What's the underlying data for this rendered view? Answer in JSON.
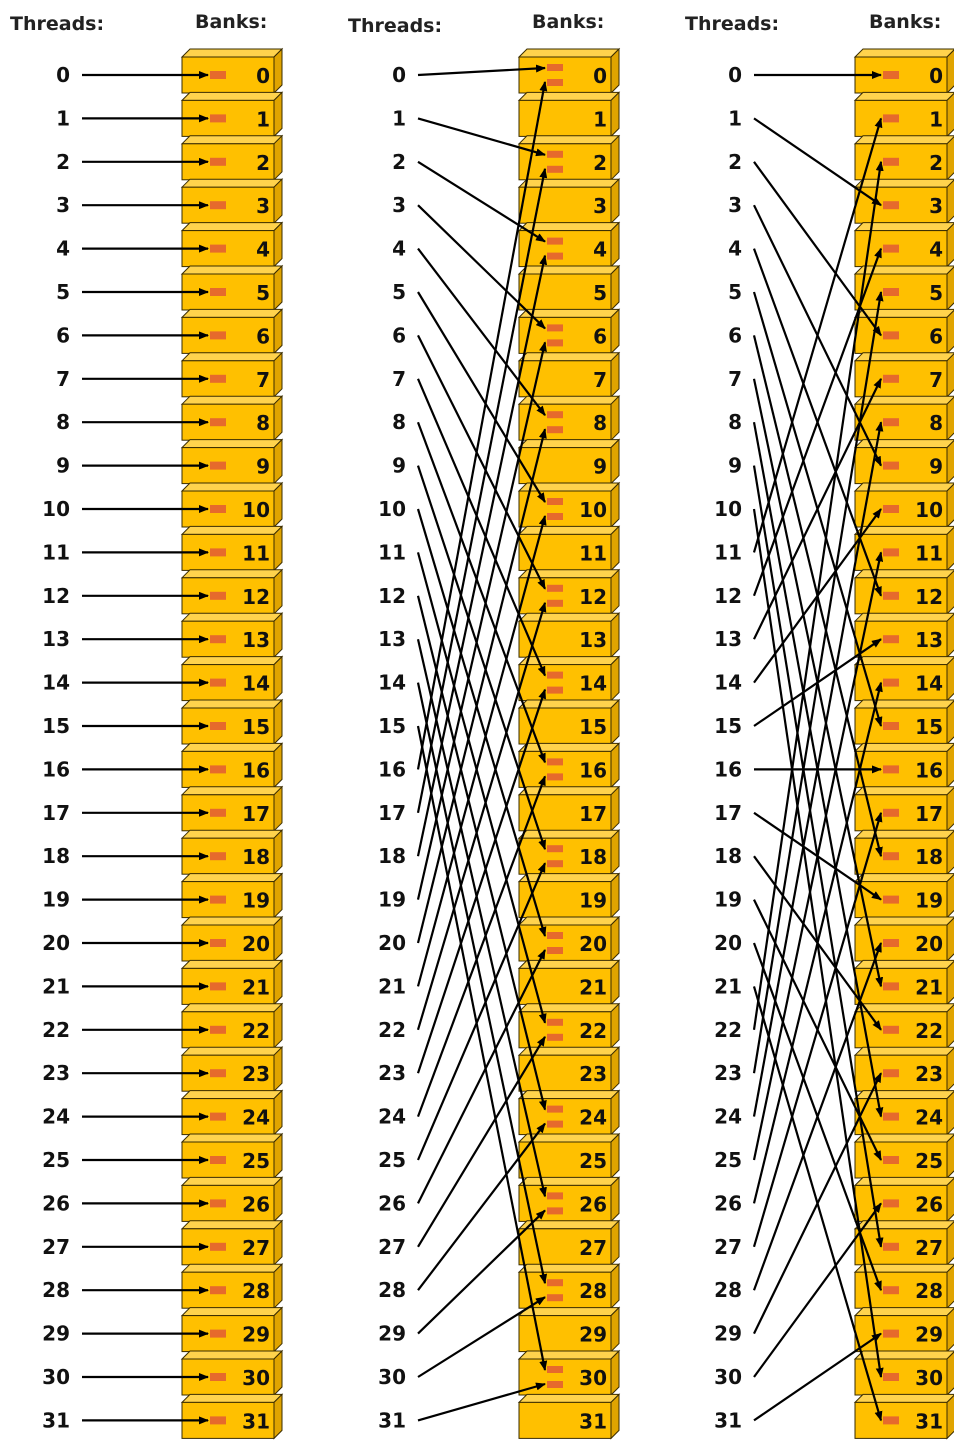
{
  "colors": {
    "bank_front": "#ffc000",
    "bank_top": "#ffd34d",
    "bank_side": "#e0a400",
    "bank_edge": "#3a2c00",
    "slot": "#e66a2c",
    "arrow": "#000000"
  },
  "panels": [
    {
      "threads_header": "Threads:",
      "banks_header": "Banks:",
      "thread_labels": [
        "0",
        "1",
        "2",
        "3",
        "4",
        "5",
        "6",
        "7",
        "8",
        "9",
        "10",
        "11",
        "12",
        "13",
        "14",
        "15",
        "16",
        "17",
        "18",
        "19",
        "20",
        "21",
        "22",
        "23",
        "24",
        "25",
        "26",
        "27",
        "28",
        "29",
        "30",
        "31"
      ],
      "bank_labels": [
        "0",
        "1",
        "2",
        "3",
        "4",
        "5",
        "6",
        "7",
        "8",
        "9",
        "10",
        "11",
        "12",
        "13",
        "14",
        "15",
        "16",
        "17",
        "18",
        "19",
        "20",
        "21",
        "22",
        "23",
        "24",
        "25",
        "26",
        "27",
        "28",
        "29",
        "30",
        "31"
      ],
      "mapping": [
        0,
        1,
        2,
        3,
        4,
        5,
        6,
        7,
        8,
        9,
        10,
        11,
        12,
        13,
        14,
        15,
        16,
        17,
        18,
        19,
        20,
        21,
        22,
        23,
        24,
        25,
        26,
        27,
        28,
        29,
        30,
        31
      ]
    },
    {
      "threads_header": "Threads:",
      "banks_header": "Banks:",
      "thread_labels": [
        "0",
        "1",
        "2",
        "3",
        "4",
        "5",
        "6",
        "7",
        "8",
        "9",
        "10",
        "11",
        "12",
        "13",
        "14",
        "15",
        "16",
        "17",
        "18",
        "19",
        "20",
        "21",
        "22",
        "23",
        "24",
        "25",
        "26",
        "27",
        "28",
        "29",
        "30",
        "31"
      ],
      "bank_labels": [
        "0",
        "1",
        "2",
        "3",
        "4",
        "5",
        "6",
        "7",
        "8",
        "9",
        "10",
        "11",
        "12",
        "13",
        "14",
        "15",
        "16",
        "17",
        "18",
        "19",
        "20",
        "21",
        "22",
        "23",
        "24",
        "25",
        "26",
        "27",
        "28",
        "29",
        "30",
        "31"
      ],
      "mapping": [
        0,
        2,
        4,
        6,
        8,
        10,
        12,
        14,
        16,
        18,
        20,
        22,
        24,
        26,
        28,
        30,
        0,
        2,
        4,
        6,
        8,
        10,
        12,
        14,
        16,
        18,
        20,
        22,
        24,
        26,
        28,
        30
      ]
    },
    {
      "threads_header": "Threads:",
      "banks_header": "Banks:",
      "thread_labels": [
        "0",
        "1",
        "2",
        "3",
        "4",
        "5",
        "6",
        "7",
        "8",
        "9",
        "10",
        "11",
        "12",
        "13",
        "14",
        "15",
        "16",
        "17",
        "18",
        "19",
        "20",
        "21",
        "22",
        "23",
        "24",
        "25",
        "26",
        "27",
        "28",
        "29",
        "30",
        "31"
      ],
      "bank_labels": [
        "0",
        "1",
        "2",
        "3",
        "4",
        "5",
        "6",
        "7",
        "8",
        "9",
        "10",
        "11",
        "12",
        "13",
        "14",
        "15",
        "16",
        "17",
        "18",
        "19",
        "20",
        "21",
        "22",
        "23",
        "24",
        "25",
        "26",
        "27",
        "28",
        "29",
        "30",
        "31"
      ],
      "mapping": [
        0,
        3,
        6,
        9,
        12,
        15,
        18,
        21,
        24,
        27,
        30,
        1,
        4,
        7,
        10,
        13,
        16,
        19,
        22,
        25,
        28,
        31,
        2,
        5,
        8,
        11,
        14,
        17,
        20,
        23,
        26,
        29
      ]
    }
  ]
}
